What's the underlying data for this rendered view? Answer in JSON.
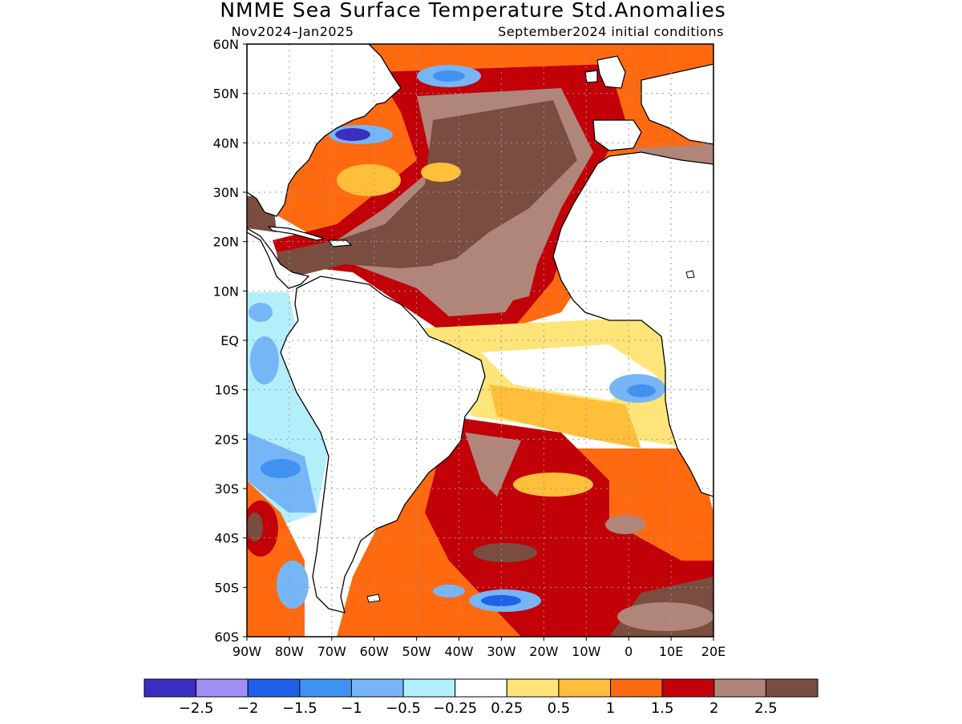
{
  "title": "NMME Sea Surface Temperature Std.Anomalies",
  "subtitle_left": "Nov2024–Jan2025",
  "subtitle_right": "September2024 initial conditions",
  "map": {
    "lon_range": [
      -90,
      20
    ],
    "lat_range": [
      -60,
      60
    ],
    "lat_ticks": [
      "60N",
      "50N",
      "40N",
      "30N",
      "20N",
      "10N",
      "EQ",
      "10S",
      "20S",
      "30S",
      "40S",
      "50S",
      "60S"
    ],
    "lon_ticks": [
      "90W",
      "80W",
      "70W",
      "60W",
      "50W",
      "40W",
      "30W",
      "20W",
      "10W",
      "0",
      "10E",
      "20E"
    ],
    "grid": "dotted"
  },
  "colorbar": {
    "colors": [
      "#3b2fbf",
      "#9f8ff5",
      "#1f62e8",
      "#3f92f2",
      "#76b6f7",
      "#b3effb",
      "#ffffff",
      "#ffe47a",
      "#ffbf3a",
      "#ff6a10",
      "#c20008",
      "#b0857a",
      "#7a4d41"
    ],
    "labels": [
      "−2.5",
      "−2",
      "−1.5",
      "−1",
      "−0.5",
      "−0.25",
      "0.25",
      "0.5",
      "1",
      "1.5",
      "2",
      "2.5"
    ]
  }
}
